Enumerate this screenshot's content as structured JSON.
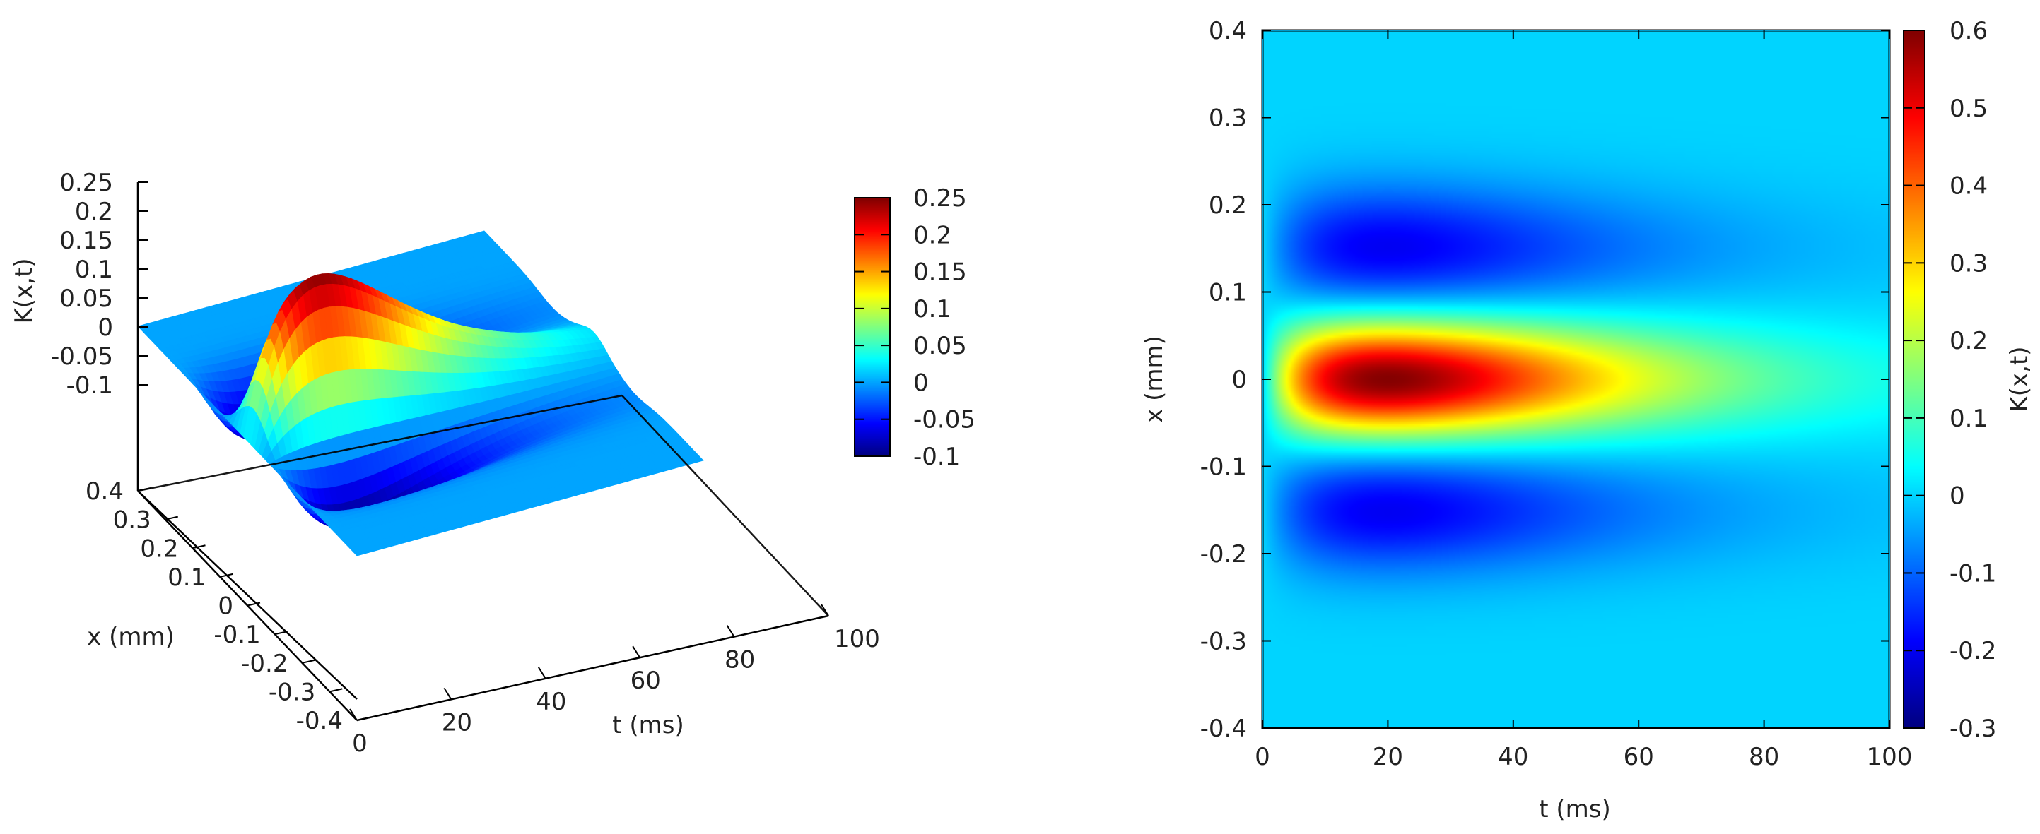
{
  "chart_data": [
    {
      "type": "surface",
      "title": "",
      "xlabel": "t (ms)",
      "ylabel": "x (mm)",
      "zlabel": "K(x,t)",
      "x_range": [
        0,
        100
      ],
      "y_range": [
        -0.4,
        0.4
      ],
      "z_range": [
        -0.1,
        0.25
      ],
      "x_ticks": [
        "0",
        "20",
        "40",
        "60",
        "80",
        "100"
      ],
      "y_ticks": [
        "0.4",
        "0.3",
        "0.2",
        "0.1",
        "0",
        "-0.1",
        "-0.2",
        "-0.3",
        "-0.4"
      ],
      "z_ticks": [
        "0.25",
        "0.2",
        "0.15",
        "0.1",
        "0.05",
        "0",
        "-0.05",
        "-0.1"
      ],
      "colorbar": {
        "range": [
          -0.1,
          0.25
        ],
        "ticks": [
          "0.25",
          "0.2",
          "0.15",
          "0.1",
          "0.05",
          "0",
          "-0.05",
          "-0.1"
        ]
      },
      "colormap": "jet",
      "peak": {
        "t": 20,
        "x": 0,
        "value": 0.25
      },
      "troughs": [
        {
          "t": 20,
          "x": 0.15,
          "value": -0.1
        },
        {
          "t": 20,
          "x": -0.15,
          "value": -0.1
        }
      ]
    },
    {
      "type": "heatmap",
      "title": "",
      "xlabel": "t (ms)",
      "ylabel": "x (mm)",
      "colorbar_label": "K(x,t)",
      "x_range": [
        0,
        100
      ],
      "y_range": [
        -0.4,
        0.4
      ],
      "x_ticks": [
        "0",
        "20",
        "40",
        "60",
        "80",
        "100"
      ],
      "y_ticks": [
        "0.4",
        "0.3",
        "0.2",
        "0.1",
        "0",
        "-0.1",
        "-0.2",
        "-0.3",
        "-0.4"
      ],
      "colorbar": {
        "range": [
          -0.3,
          0.6
        ],
        "ticks": [
          "0.6",
          "0.5",
          "0.4",
          "0.3",
          "0.2",
          "0.1",
          "0",
          "-0.1",
          "-0.2",
          "-0.3"
        ]
      },
      "colormap": "jet",
      "peak": {
        "t": 20,
        "x": 0,
        "value": 0.6
      },
      "troughs": [
        {
          "t": 20,
          "x": 0.15,
          "value": -0.2
        },
        {
          "t": 20,
          "x": -0.15,
          "value": -0.2
        }
      ]
    }
  ],
  "colors": {
    "jet": [
      "#00008f",
      "#0000ff",
      "#007fff",
      "#00ffff",
      "#7fff7f",
      "#ffff00",
      "#ff7f00",
      "#ff0000",
      "#7f0000"
    ],
    "axis": "#000000",
    "heatmap_frame": "#00bfff"
  }
}
